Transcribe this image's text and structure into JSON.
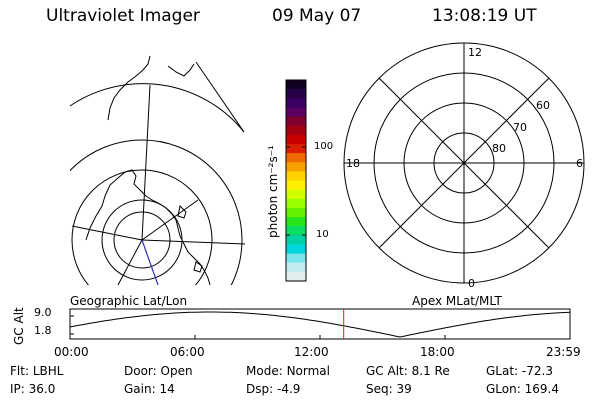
{
  "header": {
    "instrument": "Ultraviolet Imager",
    "date": "09 May 07",
    "time": "13:08:19 UT"
  },
  "left_panel": {
    "caption": "Geographic Lat/Lon"
  },
  "polar_panel": {
    "caption": "Apex MLat/MLT",
    "mlt_labels": {
      "top": "12",
      "bottom": "0",
      "left": "18",
      "right": "6"
    },
    "lat_labels": [
      "60",
      "70",
      "80"
    ]
  },
  "colorbar": {
    "unit_label": "photon cm⁻²s⁻¹",
    "ticks": [
      "100",
      "10"
    ],
    "colors_top_to_bottom": [
      "#120020",
      "#28004a",
      "#3a0064",
      "#5a0060",
      "#800030",
      "#a40014",
      "#c80000",
      "#dc1e00",
      "#f06a00",
      "#f8a000",
      "#ffd200",
      "#fff000",
      "#d2ff00",
      "#9cff00",
      "#64f000",
      "#28e61e",
      "#0adc64",
      "#00d0a6",
      "#00d4dc",
      "#7ce4ec",
      "#c2ecf0",
      "#e0eef0"
    ]
  },
  "altitude_strip": {
    "axis_label": "GC Alt",
    "y_max": "9.0",
    "y_min": "1.8",
    "time_ticks": [
      "00:00",
      "06:00",
      "12:00",
      "18:00",
      "23:59"
    ],
    "current_time_fraction": 0.5474,
    "marker_color": "#e02020"
  },
  "status": {
    "row1": [
      {
        "key": "Flt:",
        "value": "LBHL"
      },
      {
        "key": "Door:",
        "value": "Open"
      },
      {
        "key": "Mode:",
        "value": "Normal"
      },
      {
        "key": "GC Alt:",
        "value": "8.1 Re"
      },
      {
        "key": "GLat:",
        "value": "-72.3"
      }
    ],
    "row2": [
      {
        "key": "IP:",
        "value": "36.0"
      },
      {
        "key": "Gain:",
        "value": "14"
      },
      {
        "key": "Dsp:",
        "value": "-4.9"
      },
      {
        "key": "Seq:",
        "value": "39"
      },
      {
        "key": "GLon:",
        "value": "169.4"
      }
    ]
  }
}
